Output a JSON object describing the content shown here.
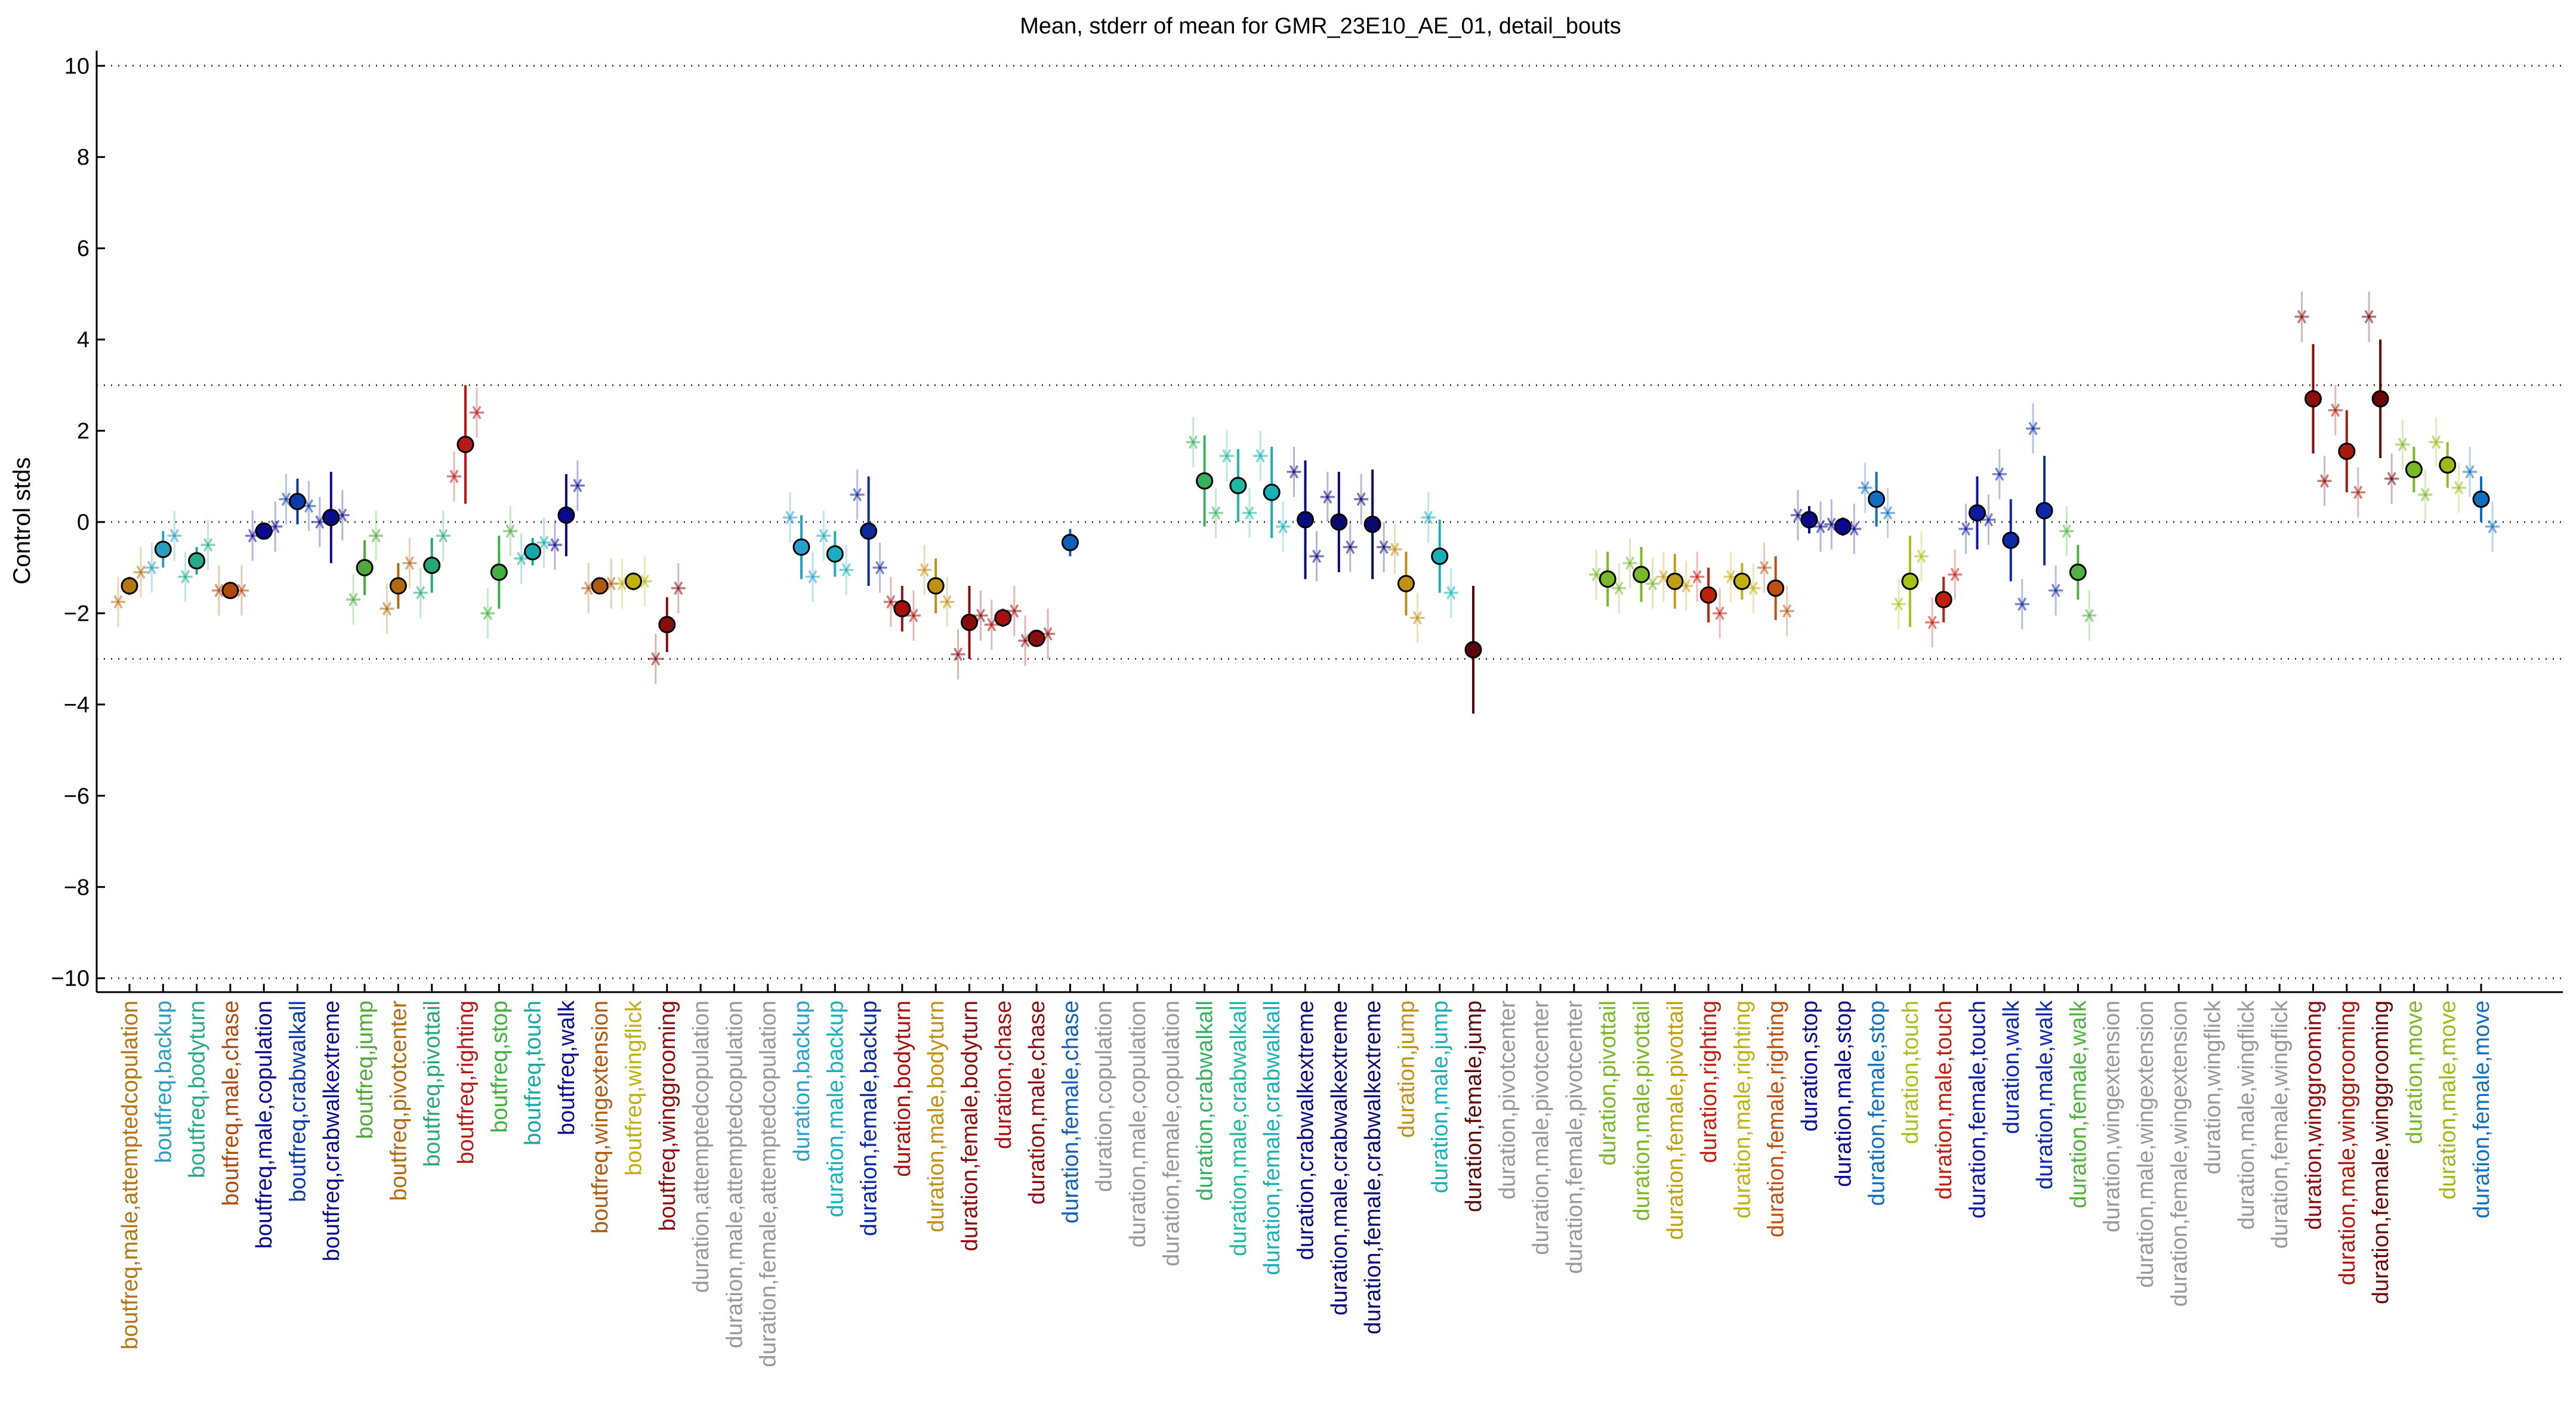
{
  "chart_data": {
    "type": "scatter",
    "title": "Mean, stderr of mean for GMR_23E10_AE_01, detail_bouts",
    "xlabel": "",
    "ylabel": "Control stds",
    "ylim": [
      -10.2,
      10.2
    ],
    "yticks": [
      -10,
      -8,
      -6,
      -4,
      -2,
      0,
      2,
      4,
      6,
      8,
      10
    ],
    "hlines": [
      10,
      3,
      0,
      -3,
      -10
    ],
    "legend": "none",
    "categories": [
      {
        "label": "boutfreq,male,attemptedcopulation",
        "color": "#b5750f",
        "mean": -1.4,
        "err": 0.2,
        "pts": [
          -1.75,
          -1.1
        ]
      },
      {
        "label": "boutfreq,backup",
        "color": "#2a9ec0",
        "mean": -0.6,
        "err": 0.4,
        "pts": [
          -1.0,
          -0.3
        ]
      },
      {
        "label": "boutfreq,bodyturn",
        "color": "#27aa8a",
        "mean": -0.85,
        "err": 0.3,
        "pts": [
          -1.2,
          -0.5
        ]
      },
      {
        "label": "boutfreq,male,chase",
        "color": "#b04a0c",
        "mean": -1.5,
        "err": 0.15,
        "pts": [
          -1.5,
          -1.5
        ]
      },
      {
        "label": "boutfreq,male,copulation",
        "color": "#0a0a90",
        "mean": -0.2,
        "err": 0.1,
        "pts": [
          -0.3,
          -0.1
        ]
      },
      {
        "label": "boutfreq,crabwalkall",
        "color": "#0c3aa8",
        "mean": 0.45,
        "err": 0.5,
        "pts": [
          0.5,
          0.35
        ]
      },
      {
        "label": "boutfreq,crabwalkextreme",
        "color": "#0b0b88",
        "mean": 0.1,
        "err": 1.0,
        "pts": [
          0.0,
          0.15
        ]
      },
      {
        "label": "boutfreq,jump",
        "color": "#52a83a",
        "mean": -1.0,
        "err": 0.6,
        "pts": [
          -1.7,
          -0.3
        ]
      },
      {
        "label": "boutfreq,pivotcenter",
        "color": "#b06a10",
        "mean": -1.4,
        "err": 0.5,
        "pts": [
          -1.9,
          -0.9
        ]
      },
      {
        "label": "boutfreq,pivottail",
        "color": "#28a878",
        "mean": -0.95,
        "err": 0.6,
        "pts": [
          -1.55,
          -0.3
        ]
      },
      {
        "label": "boutfreq,righting",
        "color": "#b81818",
        "mean": 1.7,
        "err": 1.3,
        "pts": [
          1.0,
          2.4
        ]
      },
      {
        "label": "boutfreq,stop",
        "color": "#40b040",
        "mean": -1.1,
        "err": 0.8,
        "pts": [
          -2.0,
          -0.2
        ]
      },
      {
        "label": "boutfreq,touch",
        "color": "#16a8a8",
        "mean": -0.65,
        "err": 0.3,
        "pts": [
          -0.8,
          -0.45
        ]
      },
      {
        "label": "boutfreq,walk",
        "color": "#0a0a90",
        "mean": 0.15,
        "err": 0.9,
        "pts": [
          -0.5,
          0.8
        ]
      },
      {
        "label": "boutfreq,wingextension",
        "color": "#b05a10",
        "mean": -1.4,
        "err": 0.15,
        "pts": [
          -1.45,
          -1.35
        ]
      },
      {
        "label": "boutfreq,wingflick",
        "color": "#c0b010",
        "mean": -1.3,
        "err": 0.2,
        "pts": [
          -1.35,
          -1.3
        ]
      },
      {
        "label": "boutfreq,winggrooming",
        "color": "#8a0c0c",
        "mean": -2.25,
        "err": 0.6,
        "pts": [
          -3.0,
          -1.45
        ]
      },
      {
        "label": "duration,attemptedcopulation",
        "color": "#999999",
        "mean": null,
        "err": null,
        "pts": []
      },
      {
        "label": "duration,male,attemptedcopulation",
        "color": "#999999",
        "mean": null,
        "err": null,
        "pts": []
      },
      {
        "label": "duration,female,attemptedcopulation",
        "color": "#999999",
        "mean": null,
        "err": null,
        "pts": []
      },
      {
        "label": "duration,backup",
        "color": "#2aa0d0",
        "mean": -0.55,
        "err": 0.7,
        "pts": [
          0.1,
          -1.2
        ]
      },
      {
        "label": "duration,male,backup",
        "color": "#18b0c0",
        "mean": -0.7,
        "err": 0.5,
        "pts": [
          -0.3,
          -1.05
        ]
      },
      {
        "label": "duration,female,backup",
        "color": "#0c2aa0",
        "mean": -0.2,
        "err": 1.2,
        "pts": [
          0.6,
          -1.0
        ]
      },
      {
        "label": "duration,bodyturn",
        "color": "#a81010",
        "mean": -1.9,
        "err": 0.5,
        "pts": [
          -1.75,
          -2.05
        ]
      },
      {
        "label": "duration,male,bodyturn",
        "color": "#c09010",
        "mean": -1.4,
        "err": 0.6,
        "pts": [
          -1.05,
          -1.75
        ]
      },
      {
        "label": "duration,female,bodyturn",
        "color": "#8a0c0c",
        "mean": -2.2,
        "err": 0.8,
        "pts": [
          -2.9,
          -2.05
        ]
      },
      {
        "label": "duration,chase",
        "color": "#a81010",
        "mean": -2.1,
        "err": 0.2,
        "pts": [
          -2.25,
          -1.95
        ]
      },
      {
        "label": "duration,male,chase",
        "color": "#8a0c0c",
        "mean": -2.55,
        "err": 0.15,
        "pts": [
          -2.6,
          -2.45
        ]
      },
      {
        "label": "duration,female,chase",
        "color": "#1060b8",
        "mean": -0.45,
        "err": 0.3,
        "pts": []
      },
      {
        "label": "duration,copulation",
        "color": "#999999",
        "mean": null,
        "err": null,
        "pts": []
      },
      {
        "label": "duration,male,copulation",
        "color": "#999999",
        "mean": null,
        "err": null,
        "pts": []
      },
      {
        "label": "duration,female,copulation",
        "color": "#999999",
        "mean": null,
        "err": null,
        "pts": []
      },
      {
        "label": "duration,crabwalkall",
        "color": "#38b060",
        "mean": 0.9,
        "err": 1.0,
        "pts": [
          1.75,
          0.2
        ]
      },
      {
        "label": "duration,male,crabwalkall",
        "color": "#20b8a0",
        "mean": 0.8,
        "err": 0.8,
        "pts": [
          1.45,
          0.2
        ]
      },
      {
        "label": "duration,female,crabwalkall",
        "color": "#18b0b8",
        "mean": 0.65,
        "err": 1.0,
        "pts": [
          1.45,
          -0.1
        ]
      },
      {
        "label": "duration,crabwalkextreme",
        "color": "#0a0a80",
        "mean": 0.05,
        "err": 1.3,
        "pts": [
          1.1,
          -0.75
        ]
      },
      {
        "label": "duration,male,crabwalkextreme",
        "color": "#0a0a70",
        "mean": 0.0,
        "err": 1.1,
        "pts": [
          0.55,
          -0.55
        ]
      },
      {
        "label": "duration,female,crabwalkextreme",
        "color": "#0a0a70",
        "mean": -0.05,
        "err": 1.2,
        "pts": [
          0.5,
          -0.55
        ]
      },
      {
        "label": "duration,jump",
        "color": "#c09010",
        "mean": -1.35,
        "err": 0.7,
        "pts": [
          -0.6,
          -2.1
        ]
      },
      {
        "label": "duration,male,jump",
        "color": "#18b0b8",
        "mean": -0.75,
        "err": 0.8,
        "pts": [
          0.1,
          -1.55
        ]
      },
      {
        "label": "duration,female,jump",
        "color": "#5a0808",
        "mean": -2.8,
        "err": 1.4,
        "pts": []
      },
      {
        "label": "duration,pivotcenter",
        "color": "#999999",
        "mean": null,
        "err": null,
        "pts": []
      },
      {
        "label": "duration,male,pivotcenter",
        "color": "#999999",
        "mean": null,
        "err": null,
        "pts": []
      },
      {
        "label": "duration,female,pivotcenter",
        "color": "#999999",
        "mean": null,
        "err": null,
        "pts": []
      },
      {
        "label": "duration,pivottail",
        "color": "#7ab828",
        "mean": -1.25,
        "err": 0.6,
        "pts": [
          -1.15,
          -1.45
        ]
      },
      {
        "label": "duration,male,pivottail",
        "color": "#7ab828",
        "mean": -1.15,
        "err": 0.6,
        "pts": [
          -0.9,
          -1.35
        ]
      },
      {
        "label": "duration,female,pivottail",
        "color": "#c0a010",
        "mean": -1.3,
        "err": 0.6,
        "pts": [
          -1.2,
          -1.4
        ]
      },
      {
        "label": "duration,righting",
        "color": "#c02010",
        "mean": -1.6,
        "err": 0.6,
        "pts": [
          -1.2,
          -2.0
        ]
      },
      {
        "label": "duration,male,righting",
        "color": "#c0b010",
        "mean": -1.3,
        "err": 0.4,
        "pts": [
          -1.2,
          -1.45
        ]
      },
      {
        "label": "duration,female,righting",
        "color": "#c05010",
        "mean": -1.45,
        "err": 0.7,
        "pts": [
          -1.0,
          -1.95
        ]
      },
      {
        "label": "duration,stop",
        "color": "#0a0a90",
        "mean": 0.05,
        "err": 0.3,
        "pts": [
          0.15,
          -0.1
        ]
      },
      {
        "label": "duration,male,stop",
        "color": "#0a0a90",
        "mean": -0.1,
        "err": 0.2,
        "pts": [
          -0.05,
          -0.15
        ]
      },
      {
        "label": "duration,female,stop",
        "color": "#1070c0",
        "mean": 0.5,
        "err": 0.6,
        "pts": [
          0.75,
          0.2
        ]
      },
      {
        "label": "duration,touch",
        "color": "#a8c018",
        "mean": -1.3,
        "err": 1.0,
        "pts": [
          -1.8,
          -0.75
        ]
      },
      {
        "label": "duration,male,touch",
        "color": "#c02010",
        "mean": -1.7,
        "err": 0.5,
        "pts": [
          -2.2,
          -1.15
        ]
      },
      {
        "label": "duration,female,touch",
        "color": "#0c1aa0",
        "mean": 0.2,
        "err": 0.8,
        "pts": [
          -0.15,
          0.05
        ]
      },
      {
        "label": "duration,walk",
        "color": "#0c2aa8",
        "mean": -0.4,
        "err": 0.9,
        "pts": [
          1.05,
          -1.8
        ]
      },
      {
        "label": "duration,male,walk",
        "color": "#0c2aa8",
        "mean": 0.25,
        "err": 1.2,
        "pts": [
          2.05,
          -1.5
        ]
      },
      {
        "label": "duration,female,walk",
        "color": "#50b040",
        "mean": -1.1,
        "err": 0.6,
        "pts": [
          -0.2,
          -2.05
        ]
      },
      {
        "label": "duration,wingextension",
        "color": "#999999",
        "mean": null,
        "err": null,
        "pts": []
      },
      {
        "label": "duration,male,wingextension",
        "color": "#999999",
        "mean": null,
        "err": null,
        "pts": []
      },
      {
        "label": "duration,female,wingextension",
        "color": "#999999",
        "mean": null,
        "err": null,
        "pts": []
      },
      {
        "label": "duration,wingflick",
        "color": "#999999",
        "mean": null,
        "err": null,
        "pts": []
      },
      {
        "label": "duration,male,wingflick",
        "color": "#999999",
        "mean": null,
        "err": null,
        "pts": []
      },
      {
        "label": "duration,female,wingflick",
        "color": "#999999",
        "mean": null,
        "err": null,
        "pts": []
      },
      {
        "label": "duration,winggrooming",
        "color": "#8a0c0c",
        "mean": 2.7,
        "err": 1.2,
        "pts": [
          4.5,
          0.9
        ]
      },
      {
        "label": "duration,male,winggrooming",
        "color": "#a81a0c",
        "mean": 1.55,
        "err": 0.9,
        "pts": [
          2.45,
          0.65
        ]
      },
      {
        "label": "duration,female,winggrooming",
        "color": "#6a0808",
        "mean": 2.7,
        "err": 1.3,
        "pts": [
          4.5,
          0.95
        ]
      },
      {
        "label": "duration,move",
        "color": "#7ab828",
        "mean": 1.15,
        "err": 0.5,
        "pts": [
          1.7,
          0.6
        ]
      },
      {
        "label": "duration,male,move",
        "color": "#a0b818",
        "mean": 1.25,
        "err": 0.5,
        "pts": [
          1.75,
          0.75
        ]
      },
      {
        "label": "duration,female,move",
        "color": "#1070c0",
        "mean": 0.5,
        "err": 0.5,
        "pts": [
          1.1,
          -0.1
        ]
      }
    ]
  }
}
